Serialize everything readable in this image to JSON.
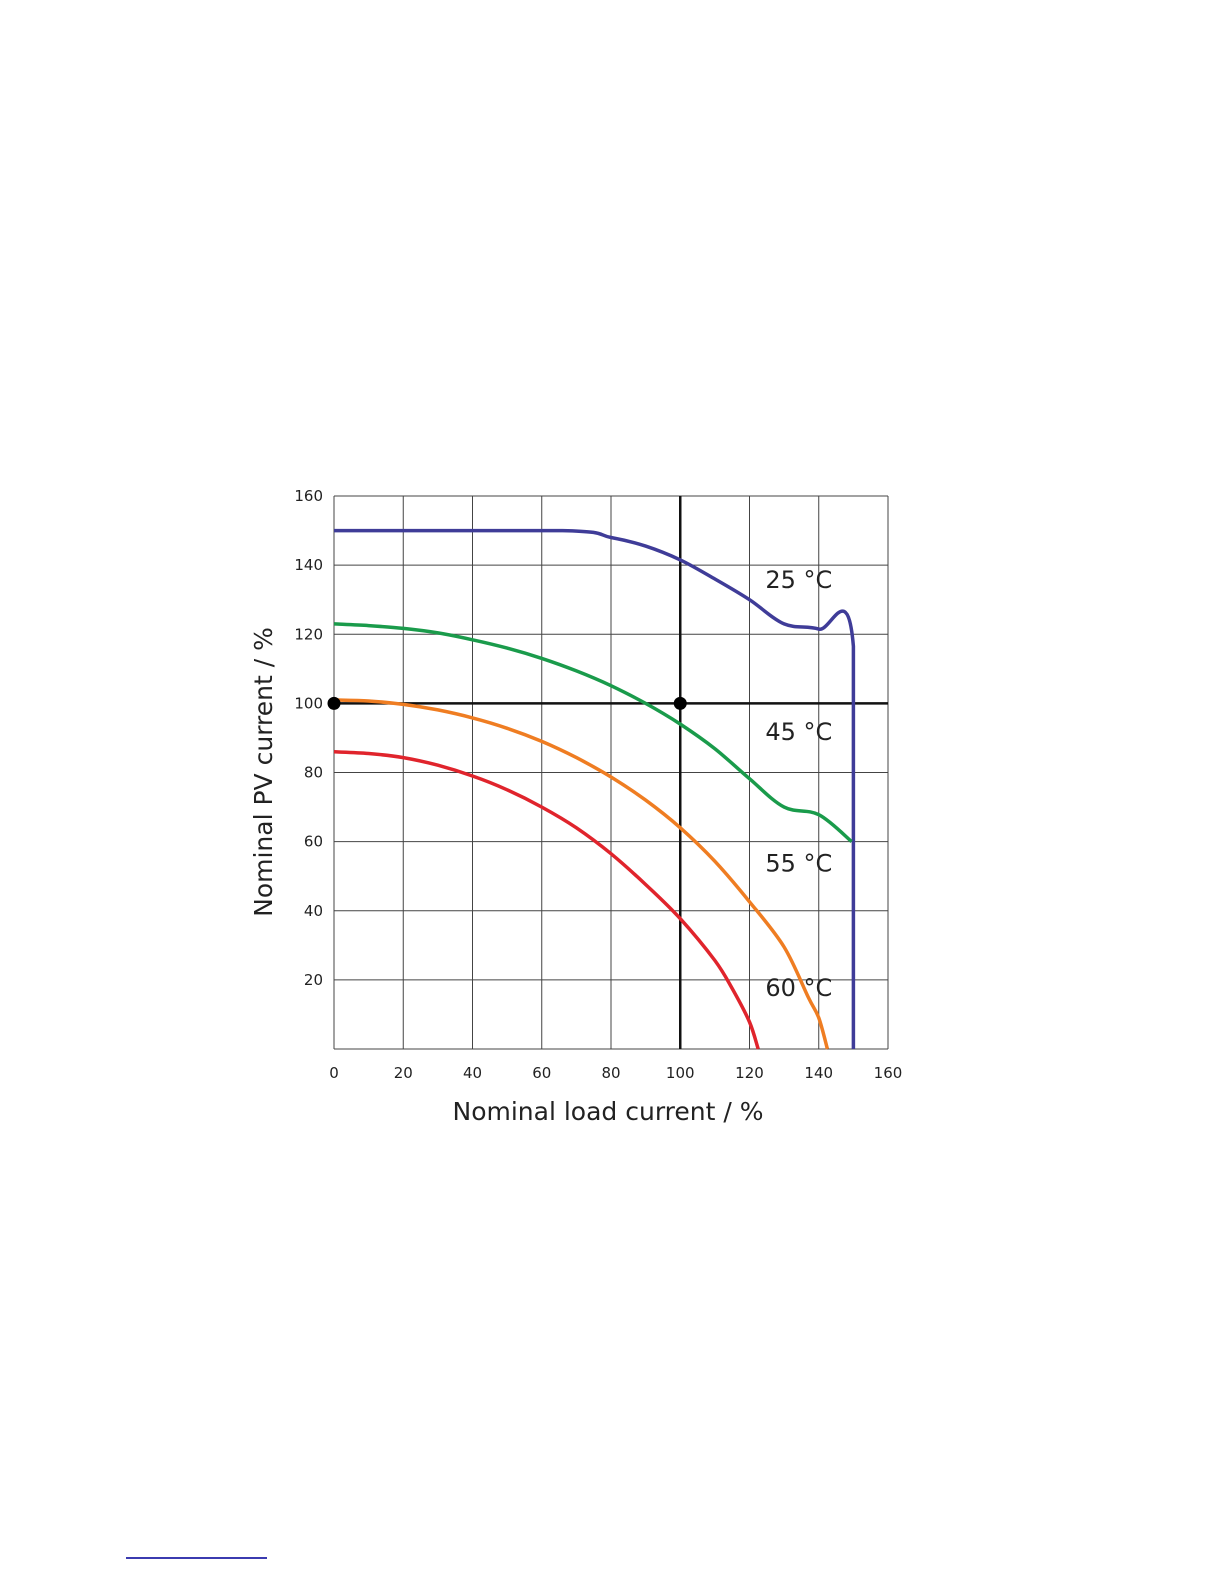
{
  "chart_data": {
    "type": "line",
    "title": "",
    "xlabel": "Nominal load current / %",
    "ylabel": "Nominal PV current / %",
    "xlim": [
      0,
      160
    ],
    "ylim": [
      0,
      160
    ],
    "x_ticks": [
      0,
      20,
      40,
      60,
      80,
      100,
      120,
      140,
      160
    ],
    "y_ticks": [
      20,
      40,
      60,
      80,
      100,
      120,
      140,
      160
    ],
    "x_tick_labels": [
      "0",
      "20",
      "40",
      "60",
      "80",
      "100",
      "120",
      "140",
      "160"
    ],
    "y_tick_labels": [
      "20",
      "40",
      "60",
      "80",
      "100",
      "120",
      "140",
      "160"
    ],
    "grid": true,
    "reference_lines": [
      {
        "orientation": "vertical",
        "x": 100
      },
      {
        "orientation": "horizontal",
        "y": 100
      }
    ],
    "markers": [
      {
        "x": 0,
        "y": 100
      },
      {
        "x": 100,
        "y": 100
      }
    ],
    "series": [
      {
        "name": "25 °C",
        "color": "#3f3c98",
        "points": [
          [
            0,
            150
          ],
          [
            66,
            150
          ],
          [
            80,
            148
          ],
          [
            90,
            145.5
          ],
          [
            100,
            141.5
          ],
          [
            110,
            136
          ],
          [
            120,
            130
          ],
          [
            130,
            123
          ],
          [
            140,
            121.5
          ],
          [
            150,
            116.5
          ],
          [
            150,
            0
          ]
        ],
        "label_position": [
          124,
          136
        ]
      },
      {
        "name": "45 °C",
        "color": "#1a9b4b",
        "points": [
          [
            0,
            123
          ],
          [
            10,
            122.5
          ],
          [
            20,
            121.7
          ],
          [
            30,
            120.4
          ],
          [
            40,
            118.4
          ],
          [
            50,
            116
          ],
          [
            60,
            113
          ],
          [
            70,
            109.4
          ],
          [
            80,
            105.1
          ],
          [
            90,
            100
          ],
          [
            100,
            94
          ],
          [
            110,
            86.9
          ],
          [
            120,
            78.2
          ],
          [
            130,
            70
          ],
          [
            140,
            67.8
          ],
          [
            149.5,
            60
          ]
        ],
        "label_position": [
          124,
          92
        ]
      },
      {
        "name": "55 °C",
        "color": "#ef7d22",
        "points": [
          [
            0,
            101
          ],
          [
            10,
            100.7
          ],
          [
            20,
            99.7
          ],
          [
            30,
            98.1
          ],
          [
            40,
            95.8
          ],
          [
            50,
            92.8
          ],
          [
            60,
            89
          ],
          [
            70,
            84.3
          ],
          [
            80,
            78.7
          ],
          [
            90,
            72
          ],
          [
            100,
            64
          ],
          [
            110,
            54.3
          ],
          [
            120,
            42.6
          ],
          [
            130,
            29.5
          ],
          [
            137,
            14.9
          ],
          [
            140,
            9
          ],
          [
            142.5,
            0
          ]
        ],
        "label_position": [
          124,
          54
        ]
      },
      {
        "name": "60 °C",
        "color": "#e0242c",
        "points": [
          [
            0,
            86
          ],
          [
            10,
            85.5
          ],
          [
            20,
            84.3
          ],
          [
            30,
            82.1
          ],
          [
            40,
            79
          ],
          [
            50,
            75
          ],
          [
            60,
            70
          ],
          [
            70,
            64
          ],
          [
            80,
            56.5
          ],
          [
            90,
            47.6
          ],
          [
            100,
            37.7
          ],
          [
            110,
            25.6
          ],
          [
            115,
            17.5
          ],
          [
            120,
            7.8
          ],
          [
            122.5,
            0
          ]
        ],
        "label_position": [
          124,
          18
        ]
      }
    ]
  }
}
